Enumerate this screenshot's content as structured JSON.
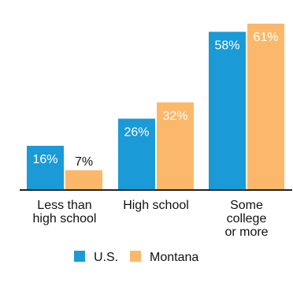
{
  "chart_data": {
    "type": "bar",
    "categories": [
      [
        "Less than",
        "high school"
      ],
      [
        "High school"
      ],
      [
        "Some",
        "college",
        "or more"
      ]
    ],
    "series": [
      {
        "name": "U.S.",
        "values": [
          16,
          26,
          58
        ],
        "labels": [
          "16%",
          "26%",
          "58%"
        ],
        "color": "#1a9ad6"
      },
      {
        "name": "Montana",
        "values": [
          7,
          32,
          61
        ],
        "labels": [
          "7%",
          "32%",
          "61%"
        ],
        "color": "#fbb86b"
      }
    ],
    "ylim": [
      0,
      61
    ],
    "grid": false,
    "legend": "bottom"
  }
}
